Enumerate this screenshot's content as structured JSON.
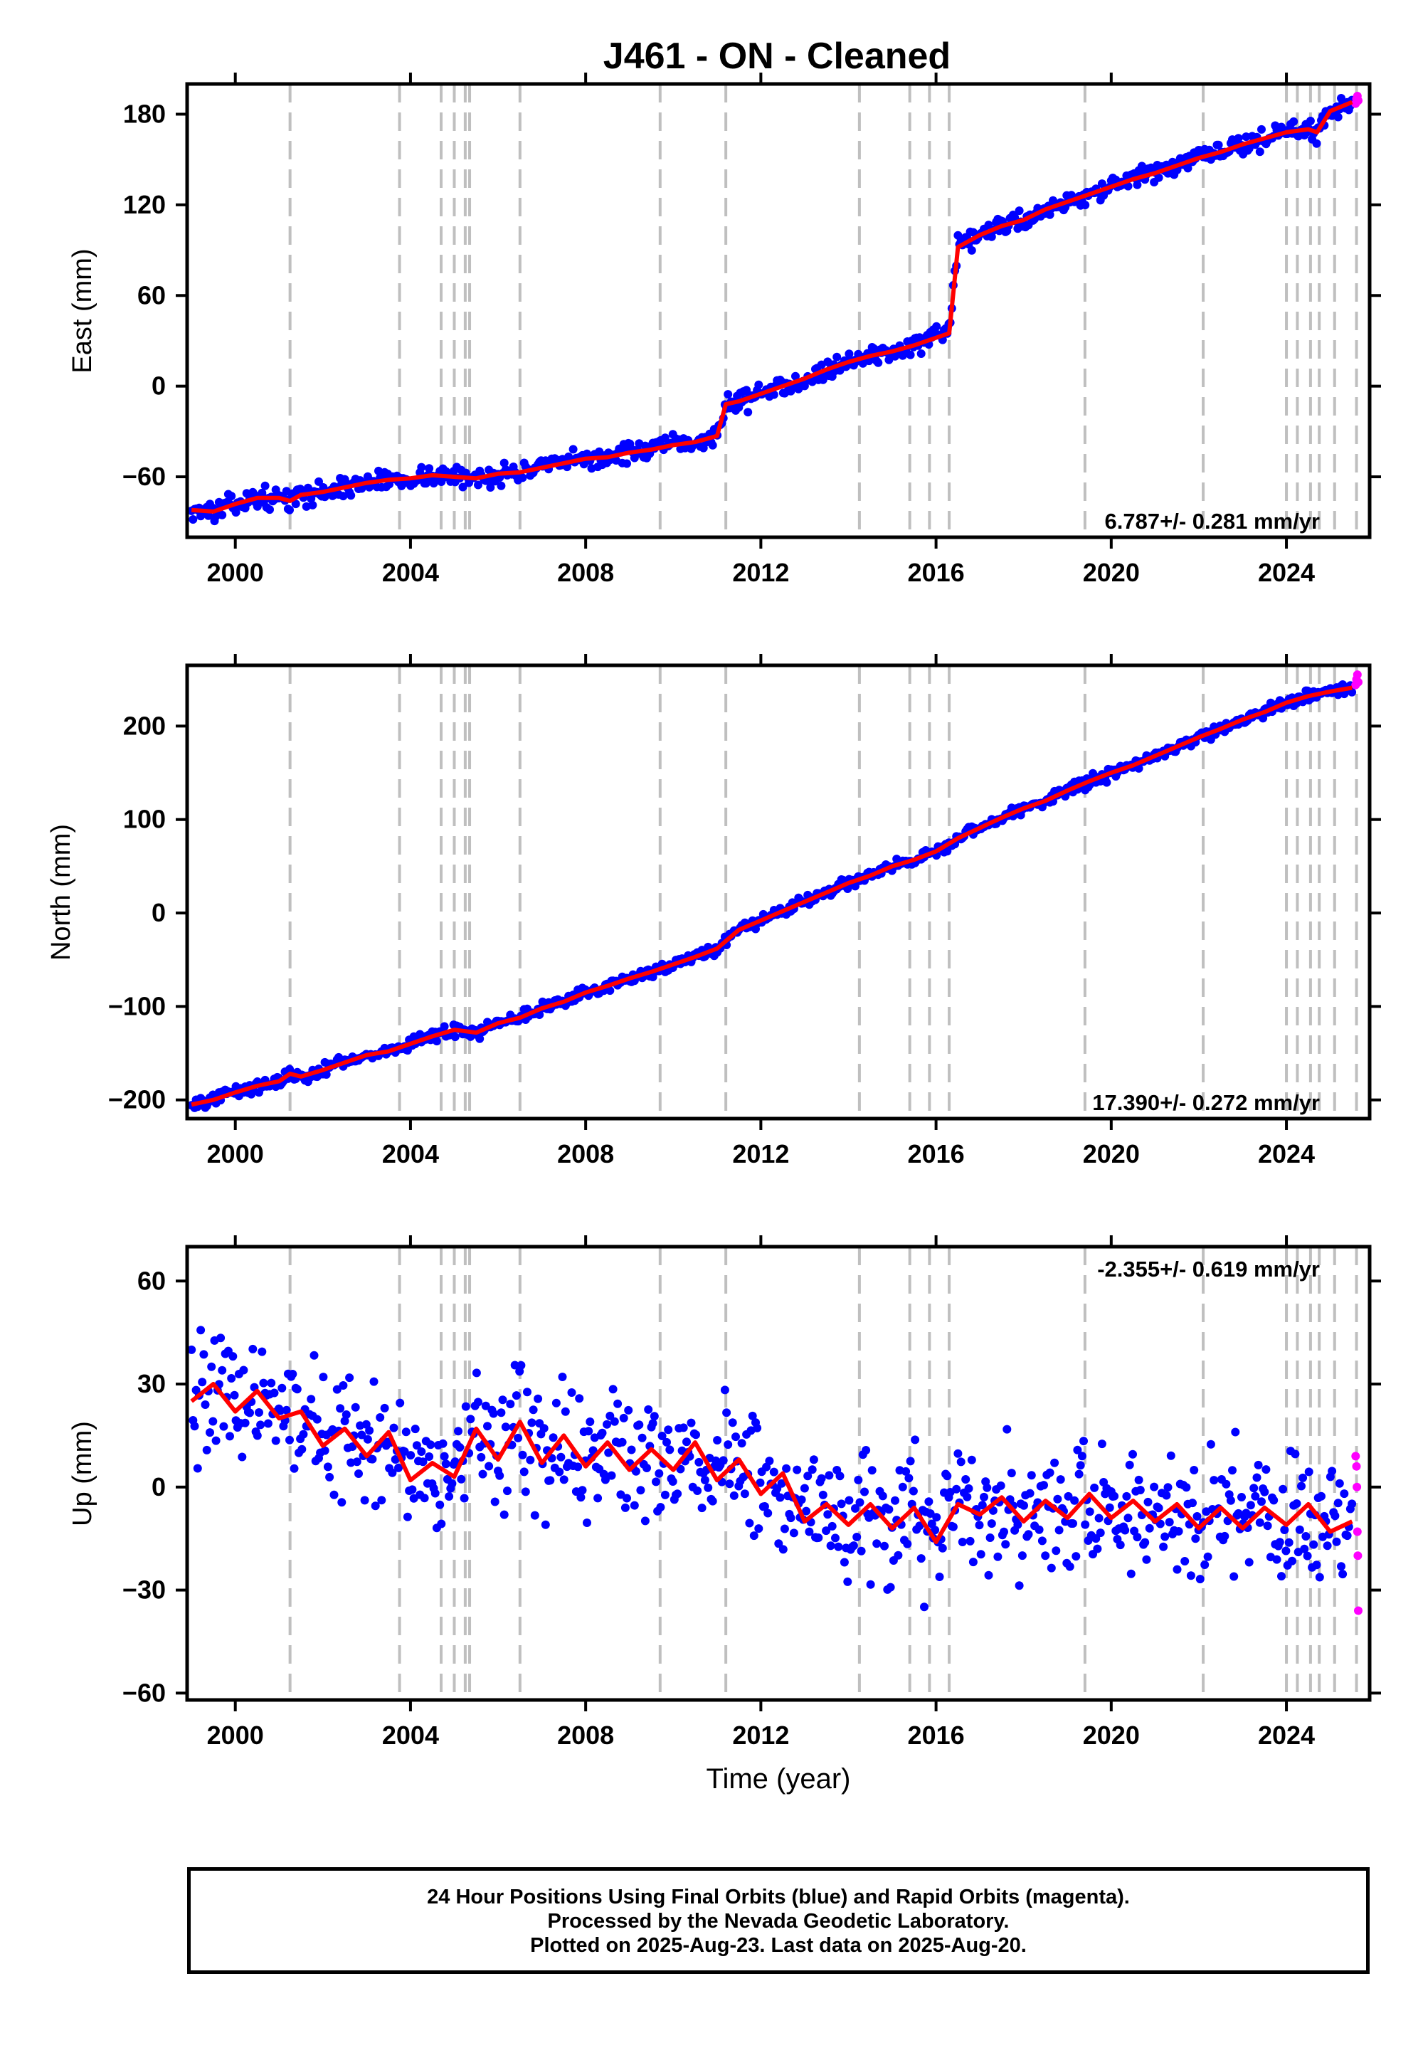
{
  "title": "J461  - ON - Cleaned",
  "xlabel": "Time (year)",
  "x_ticks": [
    "2000",
    "2004",
    "2008",
    "2012",
    "2016",
    "2020",
    "2024"
  ],
  "colors": {
    "final": "#0000ff",
    "rapid": "#ff00ff",
    "model": "#ff0000",
    "events": "#bfbfbf"
  },
  "footer": {
    "line1": "24 Hour Positions Using Final Orbits (blue) and Rapid Orbits (magenta).",
    "line2": "Processed by the Nevada Geodetic Laboratory.",
    "line3": "Plotted on 2025-Aug-23. Last data on 2025-Aug-20."
  },
  "chart_data": [
    {
      "type": "scatter",
      "ylabel": "East (mm)",
      "xlim": [
        1998.9,
        2025.9
      ],
      "ylim": [
        -100,
        200
      ],
      "y_ticks": [
        "-60",
        "0",
        "60",
        "120",
        "180"
      ],
      "rate": "6.787+/- 0.281 mm/yr",
      "rate_position": "bottom-right",
      "event_lines": [
        2001.25,
        2003.75,
        2004.7,
        2005.0,
        2005.25,
        2005.35,
        2006.5,
        2009.7,
        2011.2,
        2014.25,
        2015.4,
        2015.85,
        2016.3,
        2019.4,
        2022.1,
        2024.0,
        2024.25,
        2024.55,
        2024.75,
        2025.1,
        2025.6
      ],
      "series": [
        {
          "name": "Final Orbits",
          "x": [
            1999.0,
            1999.5,
            2000.0,
            2000.5,
            2001.0,
            2001.25,
            2001.5,
            2002.0,
            2002.5,
            2003.0,
            2003.5,
            2004.0,
            2004.5,
            2005.0,
            2005.5,
            2006.0,
            2006.5,
            2007.0,
            2007.5,
            2008.0,
            2008.5,
            2009.0,
            2009.5,
            2010.0,
            2010.5,
            2011.0,
            2011.2,
            2011.5,
            2012.0,
            2012.5,
            2013.0,
            2013.5,
            2014.0,
            2014.5,
            2015.0,
            2015.5,
            2016.0,
            2016.3,
            2016.5,
            2017.0,
            2017.5,
            2018.0,
            2018.5,
            2019.0,
            2019.5,
            2020.0,
            2020.5,
            2021.0,
            2021.5,
            2022.0,
            2022.5,
            2023.0,
            2023.5,
            2024.0,
            2024.5,
            2024.7,
            2025.0,
            2025.5
          ],
          "y": [
            -82,
            -83,
            -78,
            -74,
            -74,
            -76,
            -72,
            -70,
            -67,
            -64,
            -62,
            -61,
            -59,
            -60,
            -61,
            -58,
            -57,
            -54,
            -51,
            -48,
            -47,
            -44,
            -42,
            -39,
            -37,
            -33,
            -12,
            -10,
            -5,
            0,
            5,
            11,
            16,
            20,
            23,
            27,
            32,
            35,
            92,
            100,
            106,
            110,
            117,
            122,
            127,
            132,
            137,
            141,
            146,
            151,
            155,
            160,
            164,
            168,
            170,
            168,
            182,
            188
          ]
        },
        {
          "name": "Rapid Orbits",
          "x": [
            2025.58,
            2025.6,
            2025.62,
            2025.64
          ],
          "y": [
            187,
            190,
            192,
            189
          ]
        }
      ]
    },
    {
      "type": "scatter",
      "ylabel": "North (mm)",
      "xlim": [
        1998.9,
        2025.9
      ],
      "ylim": [
        -220,
        265
      ],
      "y_ticks": [
        "-200",
        "-100",
        "0",
        "100",
        "200"
      ],
      "rate": "17.390+/- 0.272 mm/yr",
      "rate_position": "bottom-right",
      "event_lines": [
        2001.25,
        2003.75,
        2004.7,
        2005.0,
        2005.25,
        2005.35,
        2006.5,
        2009.7,
        2011.2,
        2014.25,
        2015.4,
        2015.85,
        2016.3,
        2019.4,
        2022.1,
        2024.0,
        2024.25,
        2024.55,
        2024.75,
        2025.1,
        2025.6
      ],
      "series": [
        {
          "name": "Final Orbits",
          "x": [
            1999.0,
            1999.5,
            2000.0,
            2000.5,
            2001.0,
            2001.25,
            2001.5,
            2002.0,
            2002.5,
            2003.0,
            2003.5,
            2004.0,
            2004.5,
            2005.0,
            2005.5,
            2006.0,
            2006.5,
            2007.0,
            2007.5,
            2008.0,
            2008.5,
            2009.0,
            2009.5,
            2010.0,
            2010.5,
            2011.0,
            2011.5,
            2012.0,
            2012.5,
            2013.0,
            2013.5,
            2014.0,
            2014.5,
            2015.0,
            2015.5,
            2016.0,
            2016.5,
            2017.0,
            2017.5,
            2018.0,
            2018.5,
            2019.0,
            2019.5,
            2020.0,
            2020.5,
            2021.0,
            2021.5,
            2022.0,
            2022.5,
            2023.0,
            2023.5,
            2024.0,
            2024.5,
            2025.0,
            2025.5
          ],
          "y": [
            -205,
            -200,
            -192,
            -185,
            -180,
            -172,
            -175,
            -168,
            -160,
            -152,
            -148,
            -140,
            -132,
            -125,
            -128,
            -118,
            -112,
            -102,
            -95,
            -85,
            -78,
            -70,
            -63,
            -55,
            -47,
            -38,
            -18,
            -8,
            2,
            12,
            22,
            32,
            40,
            50,
            57,
            66,
            80,
            91,
            102,
            112,
            120,
            131,
            141,
            150,
            158,
            168,
            178,
            188,
            197,
            207,
            215,
            225,
            232,
            237,
            241
          ]
        },
        {
          "name": "Rapid Orbits",
          "x": [
            2025.58,
            2025.6,
            2025.62,
            2025.64
          ],
          "y": [
            244,
            250,
            255,
            247
          ]
        }
      ]
    },
    {
      "type": "scatter",
      "ylabel": "Up (mm)",
      "xlim": [
        1998.9,
        2025.9
      ],
      "ylim": [
        -62,
        70
      ],
      "y_ticks": [
        "-60",
        "-30",
        "0",
        "30",
        "60"
      ],
      "rate": "-2.355+/- 0.619 mm/yr",
      "rate_position": "top-right",
      "event_lines": [
        2001.25,
        2003.75,
        2004.7,
        2005.0,
        2005.25,
        2005.35,
        2006.5,
        2009.7,
        2011.2,
        2014.25,
        2015.4,
        2015.85,
        2016.3,
        2019.4,
        2022.1,
        2024.0,
        2024.25,
        2024.55,
        2024.75,
        2025.1,
        2025.6
      ],
      "series": [
        {
          "name": "Final Orbits",
          "x": [
            1999.0,
            1999.5,
            2000.0,
            2000.5,
            2001.0,
            2001.5,
            2002.0,
            2002.5,
            2003.0,
            2003.5,
            2004.0,
            2004.5,
            2005.0,
            2005.5,
            2006.0,
            2006.5,
            2007.0,
            2007.5,
            2008.0,
            2008.5,
            2009.0,
            2009.5,
            2010.0,
            2010.5,
            2011.0,
            2011.5,
            2012.0,
            2012.5,
            2013.0,
            2013.5,
            2014.0,
            2014.5,
            2015.0,
            2015.5,
            2016.0,
            2016.5,
            2017.0,
            2017.5,
            2018.0,
            2018.5,
            2019.0,
            2019.5,
            2020.0,
            2020.5,
            2021.0,
            2021.5,
            2022.0,
            2022.5,
            2023.0,
            2023.5,
            2024.0,
            2024.5,
            2025.0,
            2025.5
          ],
          "y": [
            25,
            30,
            22,
            28,
            20,
            22,
            12,
            17,
            9,
            16,
            2,
            7,
            3,
            17,
            8,
            19,
            7,
            15,
            6,
            13,
            5,
            11,
            5,
            13,
            2,
            8,
            -2,
            4,
            -10,
            -5,
            -11,
            -5,
            -12,
            -6,
            -16,
            -5,
            -8,
            -3,
            -10,
            -4,
            -9,
            -2,
            -9,
            -4,
            -10,
            -5,
            -12,
            -6,
            -12,
            -6,
            -11,
            -5,
            -13,
            -10
          ]
        },
        {
          "name": "Rapid Orbits",
          "x": [
            2025.58,
            2025.6,
            2025.61,
            2025.62,
            2025.63,
            2025.64
          ],
          "y": [
            9,
            6,
            0,
            -13,
            -20,
            -36
          ]
        }
      ]
    }
  ]
}
